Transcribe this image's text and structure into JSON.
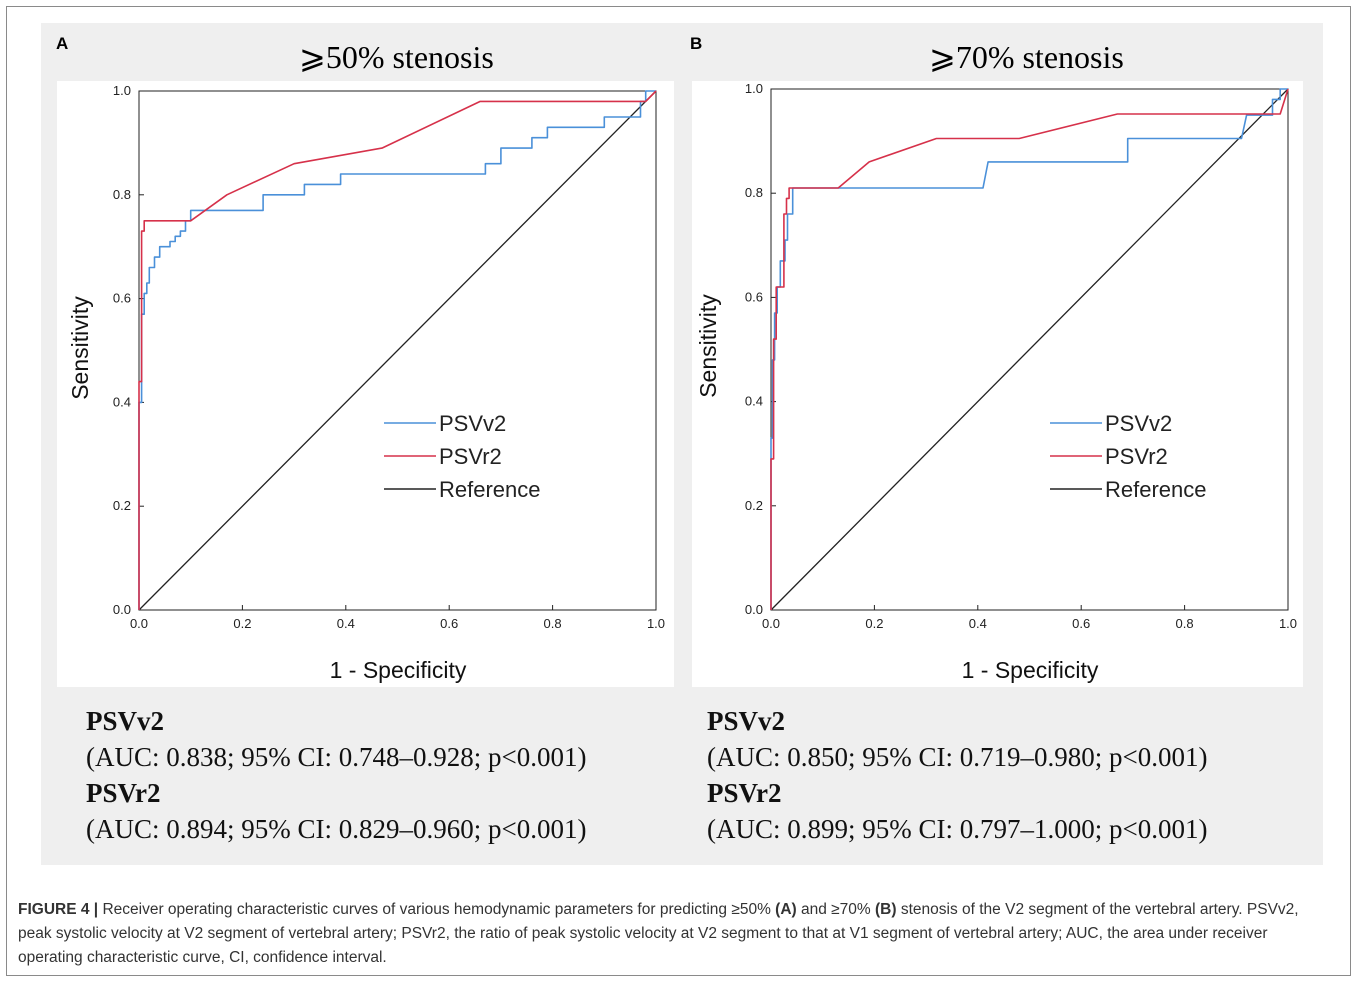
{
  "panels": [
    {
      "letter": "A",
      "title": "⩾50% stenosis",
      "auc": [
        {
          "name": "PSVv2",
          "text": "(AUC: 0.838; 95% CI: 0.748–0.928; p<0.001)"
        },
        {
          "name": "PSVr2",
          "text": "(AUC: 0.894; 95% CI: 0.829–0.960; p<0.001)"
        }
      ]
    },
    {
      "letter": "B",
      "title": "⩾70% stenosis",
      "auc": [
        {
          "name": "PSVv2",
          "text": "(AUC: 0.850; 95% CI: 0.719–0.980; p<0.001)"
        },
        {
          "name": "PSVr2",
          "text": "(AUC: 0.899; 95% CI: 0.797–1.000; p<0.001)"
        }
      ]
    }
  ],
  "caption": {
    "label": "FIGURE 4 |",
    "part1": " Receiver operating characteristic curves of various hemodynamic parameters for predicting ≥50% ",
    "a": "(A)",
    "part2": " and ≥70% ",
    "b": "(B)",
    "part3": " stenosis of the V2 segment of the vertebral artery. PSVv2, peak systolic velocity at V2 segment of vertebral artery; PSVr2, the ratio of peak systolic velocity at V2 segment to that at V1 segment of vertebral artery; AUC, the area under receiver operating characteristic curve, CI, confidence interval."
  },
  "chart_data": [
    {
      "type": "line",
      "xlabel": "1 - Specificity",
      "ylabel": "Sensitivity",
      "xlim": [
        0,
        1
      ],
      "ylim": [
        0,
        1
      ],
      "xticks": [
        "0.0",
        "0.2",
        "0.4",
        "0.6",
        "0.8",
        "1.0"
      ],
      "yticks": [
        "0.0",
        "0.2",
        "0.4",
        "0.6",
        "0.8",
        "1.0"
      ],
      "grid": false,
      "legend_position": "center-right",
      "series": [
        {
          "name": "PSVv2",
          "color": "#4a90d9",
          "x": [
            0.0,
            0.0,
            0.005,
            0.005,
            0.01,
            0.01,
            0.015,
            0.015,
            0.02,
            0.02,
            0.03,
            0.03,
            0.04,
            0.04,
            0.06,
            0.06,
            0.07,
            0.07,
            0.08,
            0.08,
            0.09,
            0.09,
            0.1,
            0.1,
            0.11,
            0.11,
            0.22,
            0.22,
            0.24,
            0.24,
            0.32,
            0.32,
            0.34,
            0.34,
            0.39,
            0.39,
            0.4,
            0.4,
            0.67,
            0.67,
            0.68,
            0.68,
            0.7,
            0.7,
            0.76,
            0.76,
            0.79,
            0.79,
            0.9,
            0.9,
            0.92,
            0.92,
            0.97,
            0.97,
            0.98,
            0.98,
            1.0
          ],
          "y": [
            0.0,
            0.4,
            0.4,
            0.57,
            0.57,
            0.61,
            0.61,
            0.63,
            0.63,
            0.66,
            0.66,
            0.68,
            0.68,
            0.7,
            0.7,
            0.71,
            0.71,
            0.72,
            0.72,
            0.73,
            0.73,
            0.75,
            0.75,
            0.77,
            0.77,
            0.77,
            0.77,
            0.77,
            0.77,
            0.8,
            0.8,
            0.82,
            0.82,
            0.82,
            0.82,
            0.84,
            0.84,
            0.84,
            0.84,
            0.86,
            0.86,
            0.86,
            0.86,
            0.89,
            0.89,
            0.91,
            0.91,
            0.93,
            0.93,
            0.95,
            0.95,
            0.95,
            0.95,
            0.98,
            0.98,
            1.0,
            1.0
          ]
        },
        {
          "name": "PSVr2",
          "color": "#d6314a",
          "x": [
            0.0,
            0.0,
            0.005,
            0.005,
            0.01,
            0.01,
            0.1,
            0.17,
            0.3,
            0.47,
            0.66,
            0.98,
            1.0
          ],
          "y": [
            0.0,
            0.44,
            0.44,
            0.73,
            0.73,
            0.75,
            0.75,
            0.8,
            0.86,
            0.89,
            0.98,
            0.98,
            1.0
          ]
        },
        {
          "name": "Reference",
          "color": "#222222",
          "x": [
            0,
            1
          ],
          "y": [
            0,
            1
          ]
        }
      ]
    },
    {
      "type": "line",
      "xlabel": "1 - Specificity",
      "ylabel": "Sensitivity",
      "xlim": [
        0,
        1
      ],
      "ylim": [
        0,
        1
      ],
      "xticks": [
        "0.0",
        "0.2",
        "0.4",
        "0.6",
        "0.8",
        "1.0"
      ],
      "yticks": [
        "0.0",
        "0.2",
        "0.4",
        "0.6",
        "0.8",
        "1.0"
      ],
      "grid": false,
      "legend_position": "center-right",
      "series": [
        {
          "name": "PSVv2",
          "color": "#4a90d9",
          "x": [
            0.0,
            0.0,
            0.003,
            0.003,
            0.007,
            0.007,
            0.012,
            0.012,
            0.018,
            0.018,
            0.022,
            0.022,
            0.027,
            0.027,
            0.032,
            0.032,
            0.037,
            0.037,
            0.042,
            0.042,
            0.41,
            0.42,
            0.69,
            0.69,
            0.91,
            0.92,
            0.97,
            0.97,
            0.985,
            0.985,
            1.0
          ],
          "y": [
            0.0,
            0.33,
            0.33,
            0.48,
            0.48,
            0.57,
            0.57,
            0.62,
            0.62,
            0.67,
            0.67,
            0.67,
            0.67,
            0.71,
            0.71,
            0.76,
            0.76,
            0.76,
            0.76,
            0.81,
            0.81,
            0.86,
            0.86,
            0.905,
            0.905,
            0.95,
            0.95,
            0.98,
            0.98,
            1.0,
            1.0
          ]
        },
        {
          "name": "PSVr2",
          "color": "#d6314a",
          "x": [
            0.0,
            0.0,
            0.005,
            0.005,
            0.01,
            0.01,
            0.02,
            0.02,
            0.025,
            0.025,
            0.03,
            0.03,
            0.035,
            0.035,
            0.13,
            0.19,
            0.32,
            0.48,
            0.67,
            0.97,
            0.985,
            1.0
          ],
          "y": [
            0.0,
            0.29,
            0.29,
            0.52,
            0.52,
            0.62,
            0.62,
            0.62,
            0.62,
            0.76,
            0.76,
            0.79,
            0.79,
            0.81,
            0.81,
            0.86,
            0.905,
            0.905,
            0.952,
            0.952,
            0.952,
            1.0
          ]
        },
        {
          "name": "Reference",
          "color": "#222222",
          "x": [
            0,
            1
          ],
          "y": [
            0,
            1
          ]
        }
      ]
    }
  ]
}
